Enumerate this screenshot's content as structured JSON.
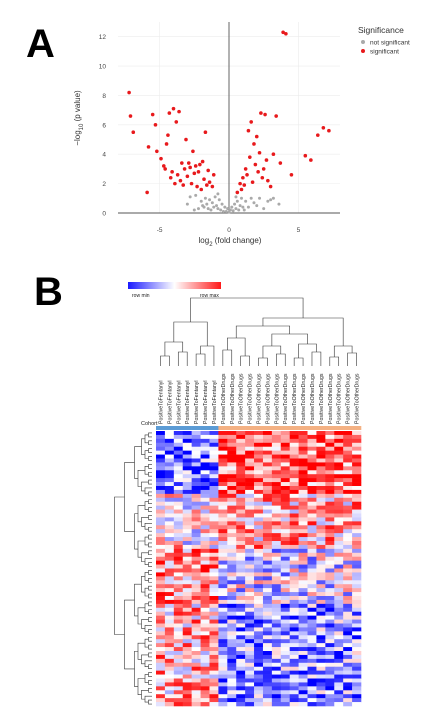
{
  "panels": {
    "a_label": "A",
    "b_label": "B"
  },
  "chart_data": [
    {
      "type": "scatter",
      "title": "",
      "xlabel": "log2 (fold change)",
      "ylabel": "−log10 (p value)",
      "xlim": [
        -8,
        8
      ],
      "ylim": [
        0,
        13
      ],
      "x_ticks": [
        -5,
        0,
        5
      ],
      "y_ticks": [
        0,
        2,
        4,
        6,
        8,
        10,
        12
      ],
      "grid": true,
      "legend_position": "top-right",
      "legend_title": "Significance",
      "colors": {
        "not significant": "#aaaaaa",
        "significant": "#e8191c"
      },
      "series": [
        {
          "name": "not significant",
          "points": [
            [
              -2.5,
              0.2
            ],
            [
              -2.2,
              0.3
            ],
            [
              -2.0,
              0.8
            ],
            [
              -1.9,
              0.5
            ],
            [
              -1.8,
              0.4
            ],
            [
              -1.7,
              1.0
            ],
            [
              -1.6,
              0.6
            ],
            [
              -1.5,
              0.3
            ],
            [
              -1.4,
              0.9
            ],
            [
              -1.3,
              0.2
            ],
            [
              -1.2,
              0.7
            ],
            [
              -1.1,
              0.4
            ],
            [
              -1.0,
              1.1
            ],
            [
              -0.9,
              0.5
            ],
            [
              -0.8,
              0.3
            ],
            [
              -0.7,
              0.9
            ],
            [
              -0.6,
              0.2
            ],
            [
              -0.5,
              0.6
            ],
            [
              -0.4,
              0.1
            ],
            [
              -0.3,
              0.4
            ],
            [
              -0.2,
              0.1
            ],
            [
              -0.1,
              0.3
            ],
            [
              0.0,
              0.05
            ],
            [
              0.1,
              0.2
            ],
            [
              0.2,
              0.4
            ],
            [
              0.3,
              0.15
            ],
            [
              0.4,
              0.6
            ],
            [
              0.5,
              0.3
            ],
            [
              0.6,
              0.8
            ],
            [
              0.7,
              0.2
            ],
            [
              0.8,
              0.5
            ],
            [
              0.9,
              1.0
            ],
            [
              1.0,
              0.4
            ],
            [
              1.1,
              0.2
            ],
            [
              1.2,
              0.8
            ],
            [
              1.4,
              0.4
            ],
            [
              1.6,
              1.0
            ],
            [
              1.8,
              0.7
            ],
            [
              2.0,
              0.5
            ],
            [
              2.2,
              1.0
            ],
            [
              2.5,
              0.3
            ],
            [
              2.8,
              0.8
            ],
            [
              3.0,
              0.9
            ],
            [
              3.2,
              1.0
            ],
            [
              3.6,
              0.6
            ],
            [
              -2.8,
              1.1
            ],
            [
              -3.0,
              0.6
            ],
            [
              -2.4,
              1.2
            ],
            [
              0.5,
              1.1
            ],
            [
              -0.8,
              1.3
            ]
          ]
        },
        {
          "name": "significant",
          "points": [
            [
              -7.2,
              8.2
            ],
            [
              -7.1,
              6.6
            ],
            [
              -6.9,
              5.5
            ],
            [
              -5.9,
              1.4
            ],
            [
              -5.8,
              4.5
            ],
            [
              -5.5,
              6.7
            ],
            [
              -5.3,
              6.0
            ],
            [
              -5.2,
              4.2
            ],
            [
              -4.9,
              3.7
            ],
            [
              -4.7,
              3.2
            ],
            [
              -4.6,
              3.0
            ],
            [
              -4.5,
              4.7
            ],
            [
              -4.4,
              5.3
            ],
            [
              -4.3,
              6.8
            ],
            [
              -4.2,
              2.4
            ],
            [
              -4.1,
              2.8
            ],
            [
              -4.0,
              7.1
            ],
            [
              -3.9,
              2.0
            ],
            [
              -3.8,
              6.2
            ],
            [
              -3.7,
              2.6
            ],
            [
              -3.6,
              6.9
            ],
            [
              -3.5,
              2.2
            ],
            [
              -3.4,
              3.4
            ],
            [
              -3.3,
              1.9
            ],
            [
              -3.2,
              3.0
            ],
            [
              -3.1,
              5.0
            ],
            [
              -3.0,
              2.5
            ],
            [
              -2.9,
              3.4
            ],
            [
              -2.8,
              3.1
            ],
            [
              -2.7,
              2.0
            ],
            [
              -2.6,
              4.2
            ],
            [
              -2.5,
              2.7
            ],
            [
              -2.4,
              3.2
            ],
            [
              -2.3,
              1.8
            ],
            [
              -2.2,
              2.8
            ],
            [
              -2.1,
              3.3
            ],
            [
              -2.0,
              1.6
            ],
            [
              -1.9,
              3.5
            ],
            [
              -1.8,
              2.3
            ],
            [
              -1.7,
              5.5
            ],
            [
              -1.6,
              1.9
            ],
            [
              -1.5,
              2.9
            ],
            [
              -1.4,
              2.1
            ],
            [
              -1.2,
              1.8
            ],
            [
              -1.1,
              2.6
            ],
            [
              0.6,
              1.4
            ],
            [
              0.8,
              2.0
            ],
            [
              0.9,
              1.6
            ],
            [
              1.0,
              2.4
            ],
            [
              1.1,
              1.9
            ],
            [
              1.2,
              3.0
            ],
            [
              1.3,
              2.6
            ],
            [
              1.4,
              5.6
            ],
            [
              1.5,
              3.8
            ],
            [
              1.6,
              6.2
            ],
            [
              1.7,
              2.1
            ],
            [
              1.8,
              4.7
            ],
            [
              1.9,
              3.3
            ],
            [
              2.0,
              5.2
            ],
            [
              2.1,
              2.8
            ],
            [
              2.2,
              4.1
            ],
            [
              2.3,
              6.8
            ],
            [
              2.4,
              2.4
            ],
            [
              2.5,
              3.0
            ],
            [
              2.6,
              6.7
            ],
            [
              2.7,
              3.6
            ],
            [
              2.8,
              2.2
            ],
            [
              3.0,
              1.8
            ],
            [
              3.2,
              4.0
            ],
            [
              3.4,
              6.6
            ],
            [
              3.7,
              3.4
            ],
            [
              3.9,
              12.3
            ],
            [
              4.1,
              12.2
            ],
            [
              4.5,
              2.6
            ],
            [
              5.5,
              3.9
            ],
            [
              5.9,
              3.6
            ],
            [
              6.4,
              5.3
            ],
            [
              6.8,
              5.8
            ],
            [
              7.2,
              5.6
            ]
          ]
        }
      ]
    },
    {
      "type": "heatmap",
      "color_key_labels": {
        "min": "row min",
        "max": "row max"
      },
      "colors": {
        "low": "#1a1aff",
        "mid": "#ffffff",
        "high": "#ff1a1a"
      },
      "row_annotation_label": "Cohort",
      "column_labels": [
        "PositiveToFentanyl",
        "PositiveToFentanyl",
        "PositiveToFentanyl",
        "PositiveToFentanyl",
        "PositiveToFentanyl",
        "PositiveToFentanyl",
        "PositiveToFentanyl",
        "PositiveToOtherDrugs",
        "PositiveToOtherDrugs",
        "PositiveToOtherDrugs",
        "PositiveToOtherDrugs",
        "PositiveToOtherDrugs",
        "PositiveToOtherDrugs",
        "PositiveToOtherDrugs",
        "PositiveToOtherDrugs",
        "PositiveToOtherDrugs",
        "PositiveToOtherDrugs",
        "PositiveToOtherDrugs",
        "PositiveToOtherDrugs",
        "PositiveToOtherDrugs",
        "PositiveToOtherDrugs",
        "PositiveToOtherDrugs",
        "PositiveToOtherDrugs"
      ],
      "column_groups": [
        "fentanyl",
        "fentanyl",
        "fentanyl",
        "fentanyl",
        "fentanyl",
        "fentanyl",
        "fentanyl",
        "other",
        "other",
        "other",
        "other",
        "other",
        "other",
        "other",
        "other",
        "other",
        "other",
        "other",
        "other",
        "other",
        "other",
        "other",
        "other"
      ],
      "group_colors": {
        "fentanyl": "#5b9bd5",
        "other": "#f4b183"
      },
      "n_rows": 70
    }
  ]
}
